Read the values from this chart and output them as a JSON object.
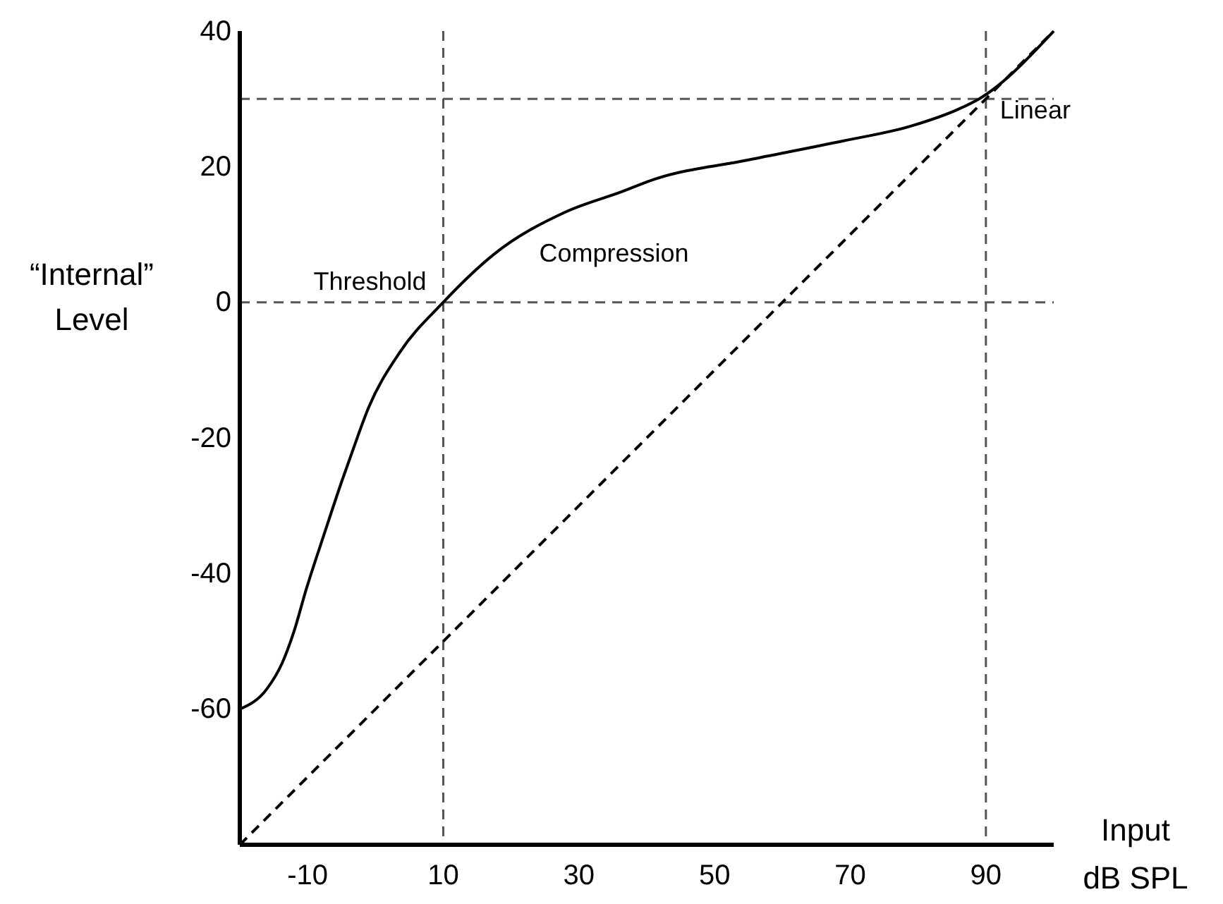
{
  "chart_data": {
    "type": "line",
    "xlabel": "Input dB SPL",
    "ylabel": "“Internal” Level",
    "xlim": [
      -20,
      100
    ],
    "ylim": [
      -80,
      40
    ],
    "xticks": [
      -10,
      10,
      30,
      50,
      70,
      90
    ],
    "yticks": [
      -60,
      -40,
      -20,
      0,
      20,
      40
    ],
    "grid": false,
    "series": [
      {
        "color": "#000000",
        "line_style": "solid",
        "x": [
          -20,
          -16,
          -13.8,
          -12,
          -10.2,
          -7.5,
          -5,
          -3.3,
          -1,
          3.5,
          10,
          17.5,
          28,
          36.3,
          41,
          55,
          69,
          79,
          86,
          89,
          100
        ],
        "values": [
          -60,
          -57,
          -53.3,
          -48.5,
          -42.3,
          -34,
          -26.5,
          -21.7,
          -15.5,
          -7.5,
          0,
          7.1,
          13.3,
          16.3,
          18.1,
          21,
          23.8,
          26,
          28.5,
          30,
          40
        ]
      },
      {
        "color": "#000000",
        "line_style": "dashed",
        "x": [
          -20,
          100
        ],
        "values": [
          -80,
          40
        ]
      }
    ],
    "ref_lines": [
      {
        "axis": "y",
        "value": 30,
        "color": "#555555",
        "line_style": "dashed"
      },
      {
        "axis": "y",
        "value": 0,
        "color": "#555555",
        "line_style": "dashed"
      },
      {
        "axis": "x",
        "value": 10,
        "color": "#555555",
        "line_style": "dashed"
      },
      {
        "axis": "x",
        "value": 90,
        "color": "#555555",
        "line_style": "dashed"
      }
    ],
    "annotations": [
      {
        "text": "Threshold",
        "x": 10,
        "y": 0
      },
      {
        "text": "Compression",
        "x": 36,
        "y": 16
      },
      {
        "text": "Linear",
        "x": 90,
        "y": 30
      }
    ]
  }
}
